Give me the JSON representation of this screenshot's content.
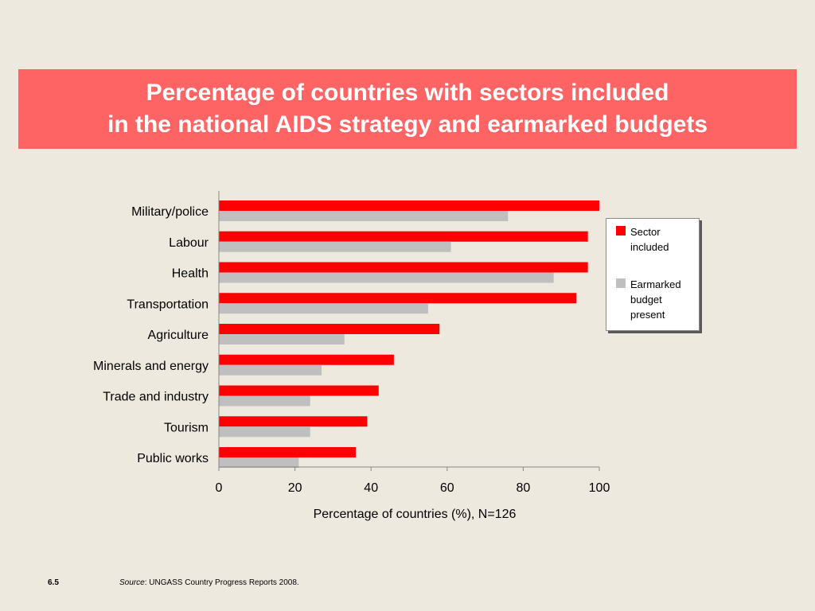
{
  "slide": {
    "title_line1": "Percentage of countries with sectors included",
    "title_line2": "in the national AIDS strategy and earmarked budgets",
    "number": "6.5",
    "source_label": "Source",
    "source_text": ": UNGASS Country Progress Reports 2008."
  },
  "colors": {
    "background": "#ede9df",
    "title_band": "#ff6464",
    "sector_included": "#ff0000",
    "earmarked_budget": "#bfbfbf"
  },
  "legend": {
    "items": [
      {
        "label": "Sector included",
        "color": "#ff0000"
      },
      {
        "label": "Earmarked budget present",
        "color": "#bfbfbf"
      }
    ]
  },
  "chart_data": {
    "type": "bar",
    "orientation": "horizontal",
    "title": "",
    "xlabel": "Percentage of countries (%), N=126",
    "ylabel": "",
    "xlim": [
      0,
      100
    ],
    "xticks": [
      0,
      20,
      40,
      60,
      80,
      100
    ],
    "grid": false,
    "legend_position": "right",
    "categories": [
      "Military/police",
      "Labour",
      "Health",
      "Transportation",
      "Agriculture",
      "Minerals and energy",
      "Trade and industry",
      "Tourism",
      "Public works"
    ],
    "series": [
      {
        "name": "Sector included",
        "color": "#ff0000",
        "values": [
          100,
          97,
          97,
          94,
          58,
          46,
          42,
          39,
          36
        ]
      },
      {
        "name": "Earmarked budget present",
        "color": "#bfbfbf",
        "values": [
          76,
          61,
          88,
          55,
          33,
          27,
          24,
          24,
          21
        ]
      }
    ]
  }
}
